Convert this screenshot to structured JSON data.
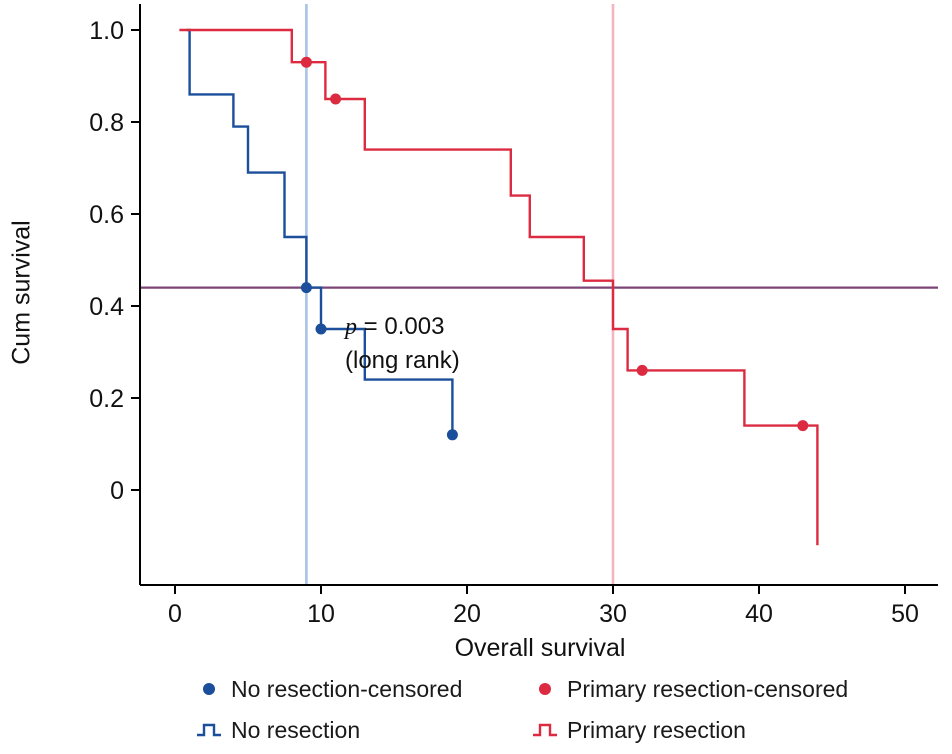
{
  "figure": {
    "xlabel": "Overall survival",
    "ylabel": "Cum survival"
  },
  "annotation": {
    "p_italic": "p",
    "p_rest": " = 0.003",
    "line2": "(long rank)"
  },
  "legend": {
    "items": [
      {
        "label": "No resection-censored",
        "type": "dot",
        "color": "#1b4e9b"
      },
      {
        "label": "Primary resection-censored",
        "type": "dot",
        "color": "#dc2b40"
      },
      {
        "label": "No resection",
        "type": "step",
        "color": "#1b4e9b"
      },
      {
        "label": "Primary resection",
        "type": "step",
        "color": "#dc2b40"
      }
    ]
  },
  "chart_data": {
    "type": "line",
    "subtype": "kaplan-meier-step",
    "title": "",
    "xlabel": "Overall survival",
    "ylabel": "Cum survival",
    "xlim": [
      0,
      50
    ],
    "ylim": [
      0,
      1.0
    ],
    "grid": false,
    "legend_position": "bottom",
    "x_ticks": [
      0,
      10,
      20,
      30,
      40,
      50
    ],
    "y_ticks": [
      {
        "v": 1.0,
        "label": "1.0"
      },
      {
        "v": 0.8,
        "label": "0.8"
      },
      {
        "v": 0.6,
        "label": "0.6"
      },
      {
        "v": 0.4,
        "label": "0.4"
      },
      {
        "v": 0.2,
        "label": "0.2"
      },
      {
        "v": 0.0,
        "label": "0"
      }
    ],
    "series": [
      {
        "name": "No resection",
        "color": "#1b4e9b",
        "start_x": 0.8,
        "steps": [
          [
            1,
            0.86
          ],
          [
            4,
            0.79
          ],
          [
            5,
            0.69
          ],
          [
            7.5,
            0.55
          ],
          [
            9,
            0.44
          ],
          [
            10,
            0.35
          ],
          [
            13,
            0.24
          ],
          [
            19,
            0.12
          ]
        ],
        "end_x": 19.3,
        "censored": [
          [
            9,
            0.44
          ],
          [
            10,
            0.35
          ],
          [
            19,
            0.12
          ]
        ]
      },
      {
        "name": "Primary resection",
        "color": "#dc2b40",
        "start_x": 0.3,
        "steps": [
          [
            8,
            0.93
          ],
          [
            10.3,
            0.85
          ],
          [
            13,
            0.74
          ],
          [
            23,
            0.64
          ],
          [
            24.3,
            0.55
          ],
          [
            28,
            0.455
          ],
          [
            30,
            0.35
          ],
          [
            31,
            0.26
          ],
          [
            39,
            0.14
          ],
          [
            44,
            -0.12
          ]
        ],
        "end_x": 44,
        "censored": [
          [
            9,
            0.93
          ],
          [
            11,
            0.85
          ],
          [
            32,
            0.26
          ],
          [
            43,
            0.14
          ]
        ]
      }
    ],
    "reference_lines": {
      "horizontal": [
        {
          "y": 0.44,
          "color": "#7d4577"
        }
      ],
      "vertical": [
        {
          "x": 9,
          "color": "#a8c3e6"
        },
        {
          "x": 30,
          "color": "#f5b5c0"
        }
      ]
    },
    "annotations": [
      {
        "text": "p = 0.003 (long rank)",
        "x": 12,
        "y": 0.33
      }
    ]
  }
}
